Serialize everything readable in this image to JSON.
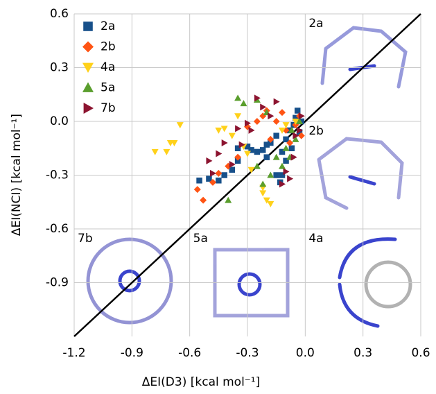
{
  "chart_data": {
    "type": "scatter",
    "xlabel": "ΔEI(D3)  [kcal mol⁻¹]",
    "ylabel": "ΔEI(NCI) [kcal mol⁻¹]",
    "xlim": [
      -1.2,
      0.6
    ],
    "ylim": [
      -1.2,
      0.6
    ],
    "xticks": [
      -1.2,
      -0.9,
      -0.6,
      -0.3,
      {
        "value": 0,
        "label": "0.0"
      },
      0.3,
      0.6
    ],
    "yticks": [
      -0.9,
      -0.6,
      -0.3,
      {
        "value": 0,
        "label": "0.0"
      },
      0.3,
      0.6
    ],
    "grid": true,
    "legend": "upper left",
    "annotations": [
      "2a",
      "2b",
      "7b",
      "5a",
      "4a"
    ],
    "series": [
      {
        "name": "2a",
        "color": "#17508a",
        "marker": "square",
        "x": [
          -0.55,
          -0.5,
          -0.45,
          -0.42,
          -0.38,
          -0.35,
          -0.35,
          -0.3,
          -0.28,
          -0.25,
          -0.22,
          -0.2,
          -0.18,
          -0.15,
          -0.13,
          -0.12,
          -0.1,
          -0.1,
          -0.08,
          -0.06,
          -0.05,
          -0.04,
          -0.03,
          -0.02,
          -0.12,
          -0.2,
          -0.07,
          -0.15
        ],
        "values": [
          -0.33,
          -0.32,
          -0.33,
          -0.3,
          -0.27,
          -0.22,
          -0.15,
          -0.14,
          -0.16,
          -0.17,
          -0.16,
          -0.2,
          -0.12,
          -0.3,
          -0.34,
          -0.17,
          -0.22,
          -0.1,
          -0.05,
          -0.02,
          0.02,
          0.06,
          -0.06,
          0.0,
          -0.3,
          -0.13,
          -0.15,
          -0.08
        ]
      },
      {
        "name": "2b",
        "color": "#ff5414",
        "marker": "diamond",
        "x": [
          -0.56,
          -0.53,
          -0.48,
          -0.45,
          -0.3,
          -0.25,
          -0.22,
          -0.2,
          -0.18,
          -0.15,
          -0.12,
          -0.1,
          -0.08,
          -0.05,
          -0.03,
          -0.02,
          -0.35,
          -0.4
        ],
        "values": [
          -0.38,
          -0.44,
          -0.34,
          -0.29,
          -0.03,
          0.0,
          0.03,
          0.06,
          -0.1,
          0.0,
          0.05,
          -0.05,
          -0.12,
          -0.02,
          0.03,
          -0.08,
          -0.2,
          -0.25
        ]
      },
      {
        "name": "4a",
        "color": "#ffd11a",
        "marker": "triangle-down",
        "x": [
          -0.78,
          -0.72,
          -0.7,
          -0.68,
          -0.65,
          -0.45,
          -0.42,
          -0.38,
          -0.35,
          -0.32,
          -0.3,
          -0.28,
          -0.22,
          -0.2,
          -0.18,
          -0.22,
          -0.12,
          -0.1,
          -0.05
        ],
        "values": [
          -0.17,
          -0.17,
          -0.12,
          -0.12,
          -0.02,
          -0.05,
          -0.04,
          -0.08,
          0.03,
          -0.14,
          -0.18,
          -0.27,
          -0.37,
          -0.44,
          -0.46,
          -0.4,
          -0.05,
          -0.02,
          0.0
        ]
      },
      {
        "name": "5a",
        "color": "#5a9e2d",
        "marker": "triangle-up",
        "x": [
          -0.4,
          -0.35,
          -0.32,
          -0.25,
          -0.25,
          -0.22,
          -0.2,
          -0.18,
          -0.15,
          -0.12,
          -0.1,
          -0.08,
          -0.07,
          -0.05,
          -0.03
        ],
        "values": [
          -0.44,
          0.13,
          0.1,
          0.12,
          -0.25,
          -0.35,
          0.05,
          -0.3,
          -0.2,
          -0.25,
          -0.15,
          -0.2,
          -0.05,
          -0.1,
          0.0
        ]
      },
      {
        "name": "7b",
        "color": "#8c1430",
        "marker": "triangle-right",
        "x": [
          -0.5,
          -0.48,
          -0.45,
          -0.42,
          -0.38,
          -0.35,
          -0.33,
          -0.3,
          -0.28,
          -0.25,
          -0.22,
          -0.18,
          -0.15,
          -0.12,
          -0.1,
          -0.08,
          -0.06,
          -0.05,
          -0.03,
          -0.02
        ],
        "values": [
          -0.22,
          -0.29,
          -0.18,
          -0.12,
          -0.24,
          -0.04,
          -0.13,
          -0.01,
          -0.05,
          0.13,
          0.08,
          0.03,
          0.11,
          -0.35,
          -0.28,
          -0.32,
          -0.2,
          -0.08,
          -0.05,
          0.03
        ]
      }
    ]
  }
}
